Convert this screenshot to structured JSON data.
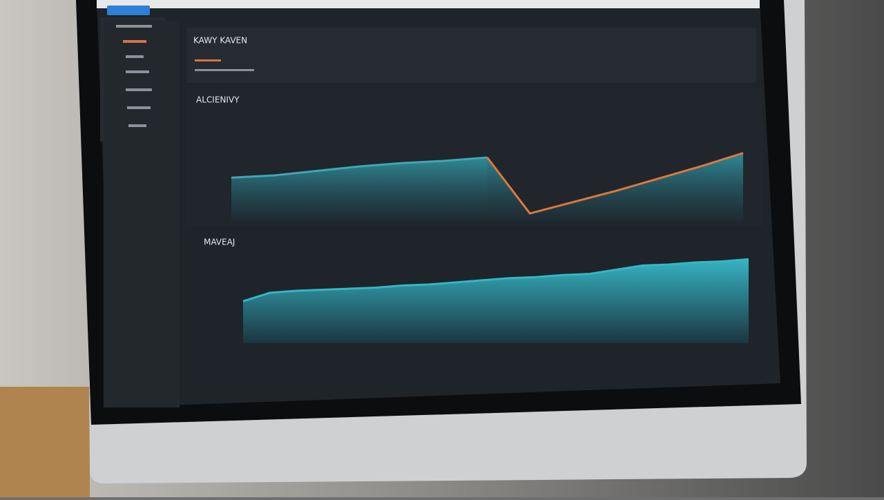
{
  "header": {
    "title": "KAWY KAVEN"
  },
  "chart_data": [
    {
      "type": "area",
      "title": "ALCIENIVY",
      "ylim": [
        0,
        100
      ],
      "series": [
        {
          "color": "#3fa7b5",
          "values": [
            40,
            42,
            46,
            50,
            53,
            55,
            58,
            null,
            null,
            null,
            null,
            null,
            null
          ]
        },
        {
          "color": "#e0773a",
          "values": [
            null,
            null,
            null,
            null,
            null,
            null,
            58,
            8,
            18,
            28,
            39,
            50,
            62
          ]
        }
      ]
    },
    {
      "type": "area",
      "title": "MAVEAJ",
      "ylim": [
        0,
        100
      ],
      "series": [
        {
          "color": "#35b6c6",
          "values": [
            40,
            48,
            50,
            51,
            52,
            53,
            55,
            56,
            58,
            60,
            62,
            63,
            65,
            66,
            70,
            74,
            75,
            77,
            78,
            80
          ]
        }
      ]
    }
  ]
}
